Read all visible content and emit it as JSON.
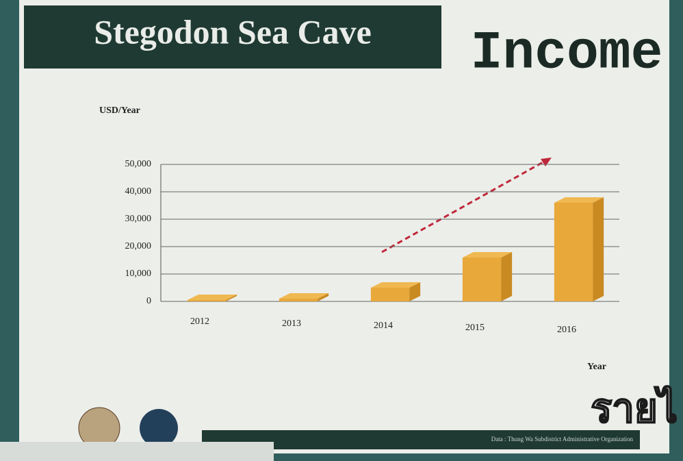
{
  "chart_data": {
    "type": "bar",
    "title": "Stegodon Sea Cave",
    "subtitle": "Income",
    "y_label": "USD/Year",
    "x_label": "Year",
    "source": "Data : Thung Wa Subdistrict Administrative Organization",
    "overlay_text": "รายไ",
    "categories": [
      "2012",
      "2013",
      "2014",
      "2015",
      "2016"
    ],
    "values": [
      500,
      1000,
      5000,
      16000,
      36000
    ],
    "color": "#e8a83a",
    "ylim": [
      0,
      50000
    ],
    "yticks": [
      0,
      {
        "value": 10000,
        "label": "10,000"
      },
      {
        "value": 20000,
        "label": "20,000"
      },
      {
        "value": 30000,
        "label": "30,000"
      },
      {
        "value": 40000,
        "label": "40,000"
      },
      {
        "value": 50000,
        "label": "50,000"
      }
    ],
    "grid": true
  }
}
